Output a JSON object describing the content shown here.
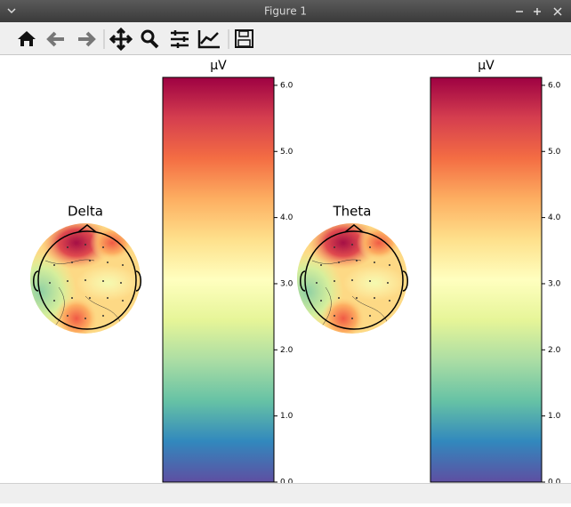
{
  "window": {
    "title": "Figure 1"
  },
  "plots": [
    {
      "title": "Delta",
      "colorbar": {
        "label": "µV",
        "lim": [
          0,
          6.12
        ],
        "ticks": [
          {
            "value": 0,
            "label": "0.0"
          },
          {
            "value": 1,
            "label": "1.0"
          },
          {
            "value": 2,
            "label": "2.0"
          },
          {
            "value": 3,
            "label": "3.0"
          },
          {
            "value": 4,
            "label": "4.0"
          },
          {
            "value": 5,
            "label": "5.0"
          },
          {
            "value": 6,
            "label": "6.0"
          }
        ]
      }
    },
    {
      "title": "Theta",
      "colorbar": {
        "label": "µV",
        "lim": [
          0,
          6.12
        ],
        "ticks": [
          {
            "value": 0,
            "label": "0.0"
          },
          {
            "value": 1,
            "label": "1.0"
          },
          {
            "value": 2,
            "label": "2.0"
          },
          {
            "value": 3,
            "label": "3.0"
          },
          {
            "value": 4,
            "label": "4.0"
          },
          {
            "value": 5,
            "label": "5.0"
          },
          {
            "value": 6,
            "label": "6.0"
          }
        ]
      }
    }
  ]
}
